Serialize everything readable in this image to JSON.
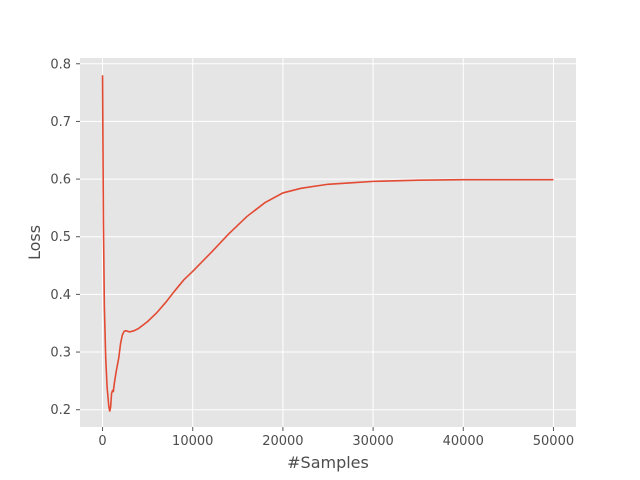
{
  "chart_data": {
    "type": "line",
    "title": "",
    "xlabel": "#Samples",
    "ylabel": "Loss",
    "xlim": [
      -2500,
      52500
    ],
    "ylim": [
      0.17,
      0.81
    ],
    "grid": true,
    "legend": "none",
    "colors": {
      "background": "#e5e5e5",
      "grid": "#ffffff",
      "line": "#e24a33",
      "tick_text": "#4d4d4d",
      "tick_mark": "#555555"
    },
    "x_ticks": [
      0,
      10000,
      20000,
      30000,
      40000,
      50000
    ],
    "x_tick_labels": [
      "0",
      "10000",
      "20000",
      "30000",
      "40000",
      "50000"
    ],
    "y_ticks": [
      0.2,
      0.3,
      0.4,
      0.5,
      0.6,
      0.7,
      0.8
    ],
    "y_tick_labels": [
      "0.2",
      "0.3",
      "0.4",
      "0.5",
      "0.6",
      "0.7",
      "0.8"
    ],
    "series": [
      {
        "x": [
          0,
          100,
          200,
          350,
          500,
          700,
          800,
          900,
          1000,
          1100,
          1200,
          1300,
          1500,
          1800,
          2000,
          2200,
          2400,
          2600,
          3000,
          3500,
          4000,
          5000,
          6000,
          7000,
          8000,
          9000,
          10000,
          12000,
          14000,
          16000,
          18000,
          20000,
          22000,
          25000,
          28000,
          30000,
          35000,
          40000,
          45000,
          50000
        ],
        "y": [
          0.78,
          0.52,
          0.38,
          0.29,
          0.24,
          0.205,
          0.197,
          0.205,
          0.228,
          0.233,
          0.232,
          0.245,
          0.265,
          0.29,
          0.315,
          0.33,
          0.336,
          0.337,
          0.335,
          0.337,
          0.341,
          0.353,
          0.368,
          0.386,
          0.406,
          0.425,
          0.44,
          0.472,
          0.505,
          0.535,
          0.559,
          0.576,
          0.584,
          0.591,
          0.594,
          0.596,
          0.598,
          0.599,
          0.599,
          0.599
        ]
      }
    ]
  }
}
